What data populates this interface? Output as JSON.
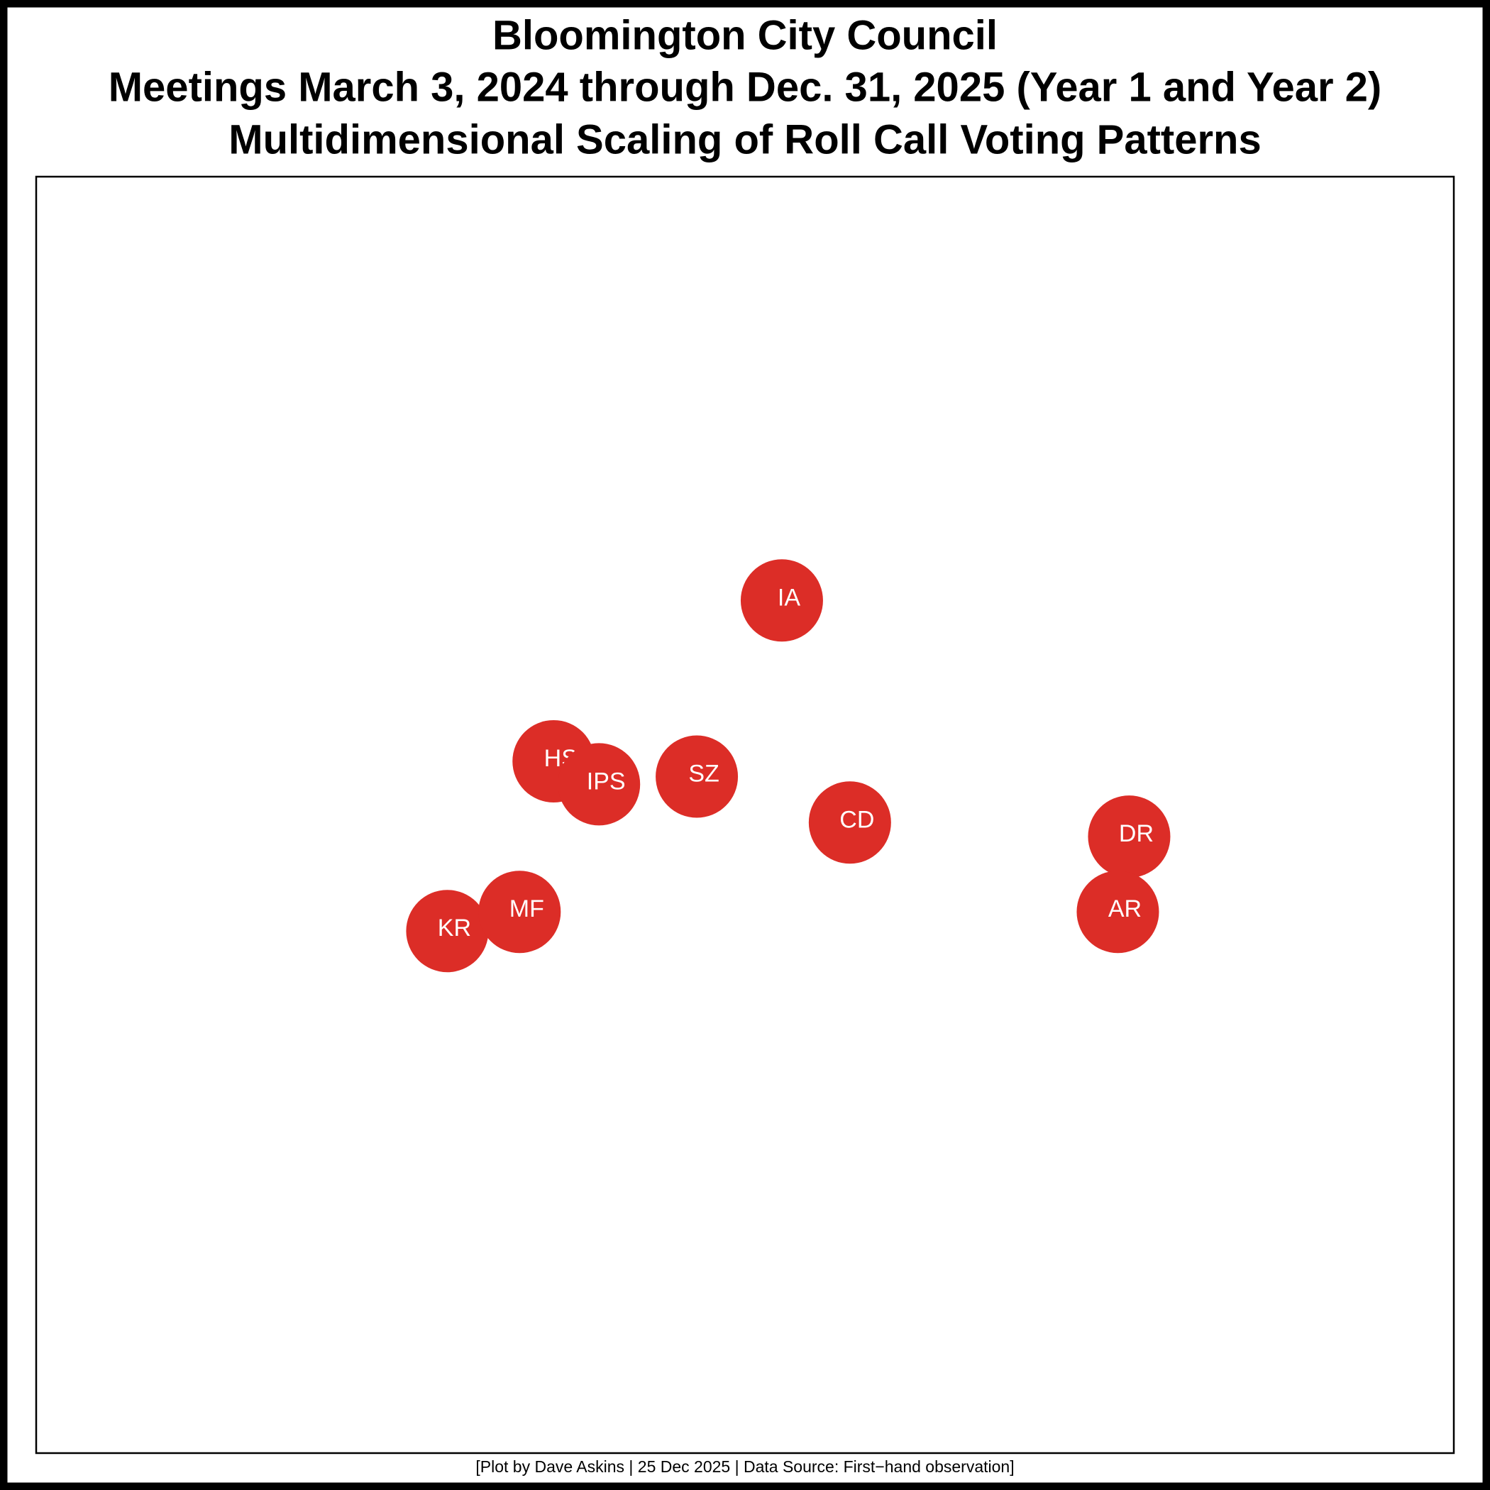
{
  "chart_data": {
    "type": "scatter",
    "title": [
      "Bloomington City Council",
      "Meetings March 3, 2024 through Dec. 31, 2025 (Year 1 and Year 2)",
      "Multidimensional Scaling of Roll Call Voting Patterns"
    ],
    "caption": "[Plot by Dave Askins | 25 Dec 2025 | Data Source: First−hand observation]",
    "labels": [
      "IA",
      "HS",
      "IPS",
      "SZ",
      "CD",
      "DR",
      "AR",
      "KR",
      "MF"
    ],
    "x": [
      52.6,
      36.5,
      39.7,
      46.6,
      57.4,
      77.1,
      76.3,
      29.0,
      34.1
    ],
    "values": [
      66.8,
      54.2,
      52.4,
      53.0,
      49.4,
      48.3,
      42.4,
      40.9,
      42.4
    ],
    "color": "#dc2d27",
    "xlim": [
      0,
      100
    ],
    "ylim": [
      0,
      100
    ]
  }
}
